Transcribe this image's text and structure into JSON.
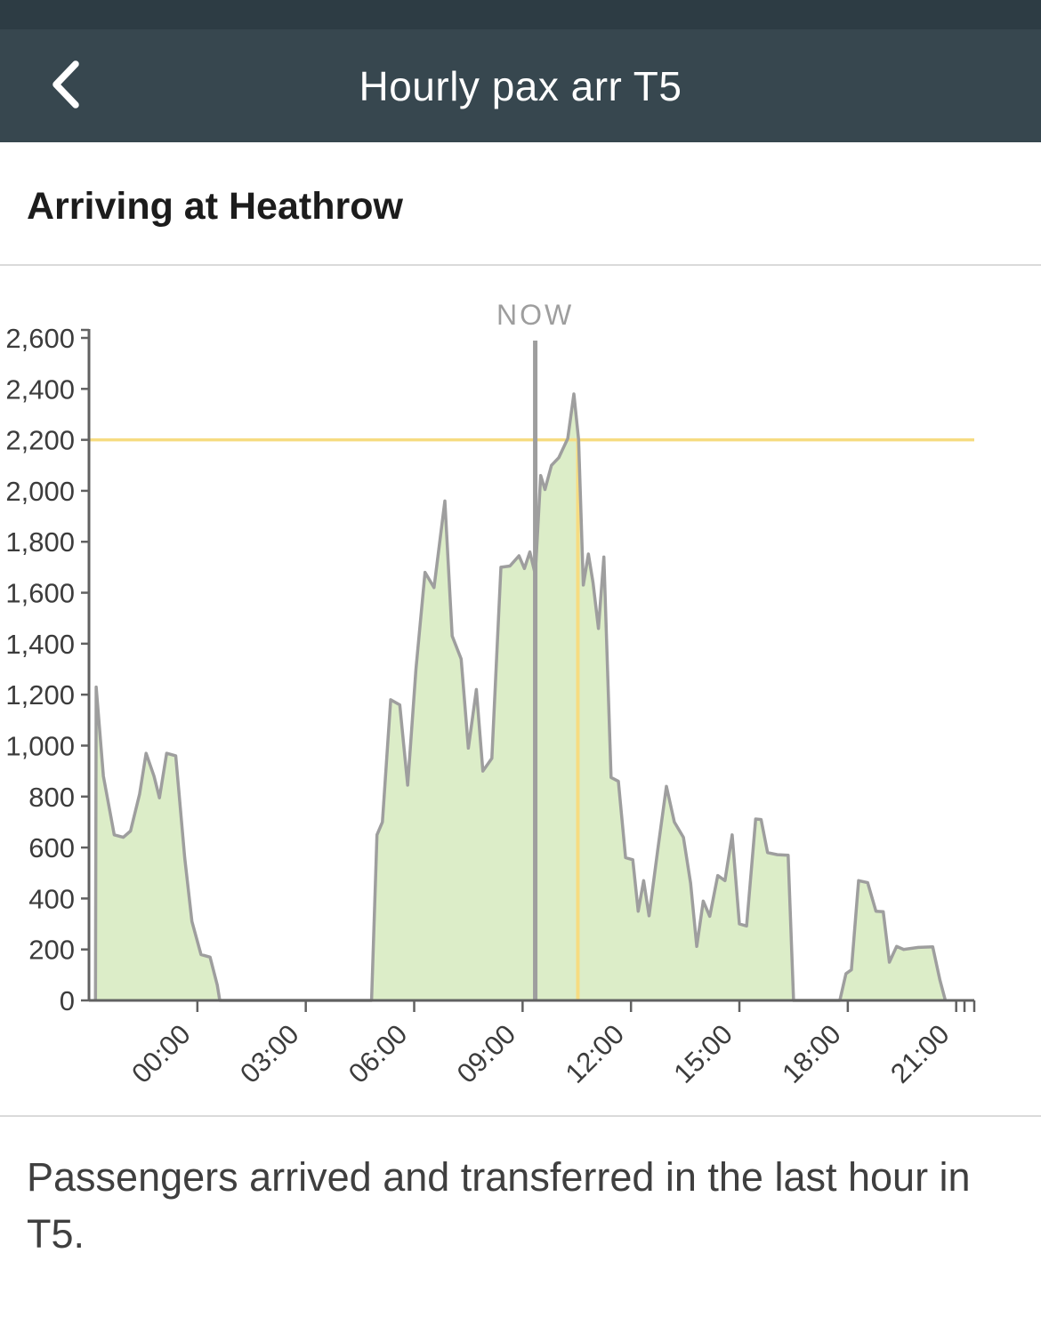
{
  "header": {
    "title": "Hourly pax arr T5"
  },
  "section": {
    "title": "Arriving at Heathrow"
  },
  "footer": {
    "description": "Passengers arrived and transferred in the last hour in T5."
  },
  "chart_data": {
    "type": "area",
    "now_label": "NOW",
    "now_hour": 9.35,
    "threshold_value": 2200,
    "threshold_marker_hour": 10.53,
    "x_range": [
      -3,
      21.5
    ],
    "y_range": [
      0,
      2600
    ],
    "y_ticks": [
      0,
      200,
      400,
      600,
      800,
      1000,
      1200,
      1400,
      1600,
      1800,
      2000,
      2200,
      2400,
      2600
    ],
    "x_ticks": [
      {
        "hour": 0,
        "label": "00:00"
      },
      {
        "hour": 3,
        "label": "03:00"
      },
      {
        "hour": 6,
        "label": "06:00"
      },
      {
        "hour": 9,
        "label": "09:00"
      },
      {
        "hour": 12,
        "label": "12:00"
      },
      {
        "hour": 15,
        "label": "15:00"
      },
      {
        "hour": 18,
        "label": "18:00"
      },
      {
        "hour": 21,
        "label": "21:00"
      }
    ],
    "colors": {
      "fill": "#dcedc8",
      "line": "#9e9e9e",
      "threshold": "#f6dc81",
      "now": "#9e9e9e",
      "axis": "#616161",
      "tick_label": "#3c3c3c"
    },
    "points_hour_value": [
      [
        -2.82,
        0
      ],
      [
        -2.8,
        1230
      ],
      [
        -2.6,
        880
      ],
      [
        -2.3,
        650
      ],
      [
        -2.05,
        640
      ],
      [
        -1.85,
        665
      ],
      [
        -1.6,
        810
      ],
      [
        -1.42,
        970
      ],
      [
        -1.2,
        880
      ],
      [
        -1.05,
        795
      ],
      [
        -0.85,
        970
      ],
      [
        -0.6,
        960
      ],
      [
        -0.35,
        560
      ],
      [
        -0.15,
        310
      ],
      [
        0.1,
        180
      ],
      [
        0.35,
        170
      ],
      [
        0.55,
        60
      ],
      [
        0.62,
        0
      ],
      [
        4.82,
        0
      ],
      [
        4.97,
        650
      ],
      [
        5.12,
        700
      ],
      [
        5.35,
        1180
      ],
      [
        5.6,
        1160
      ],
      [
        5.82,
        845
      ],
      [
        6.05,
        1300
      ],
      [
        6.3,
        1680
      ],
      [
        6.55,
        1620
      ],
      [
        6.85,
        1960
      ],
      [
        7.05,
        1430
      ],
      [
        7.3,
        1340
      ],
      [
        7.5,
        990
      ],
      [
        7.72,
        1220
      ],
      [
        7.9,
        900
      ],
      [
        8.15,
        950
      ],
      [
        8.4,
        1700
      ],
      [
        8.65,
        1705
      ],
      [
        8.9,
        1745
      ],
      [
        9.05,
        1695
      ],
      [
        9.2,
        1760
      ],
      [
        9.35,
        1672
      ],
      [
        9.5,
        2060
      ],
      [
        9.62,
        2005
      ],
      [
        9.8,
        2100
      ],
      [
        10.0,
        2130
      ],
      [
        10.25,
        2205
      ],
      [
        10.42,
        2380
      ],
      [
        10.55,
        2200
      ],
      [
        10.68,
        1630
      ],
      [
        10.82,
        1752
      ],
      [
        10.95,
        1640
      ],
      [
        11.1,
        1460
      ],
      [
        11.25,
        1740
      ],
      [
        11.45,
        875
      ],
      [
        11.65,
        860
      ],
      [
        11.85,
        560
      ],
      [
        12.05,
        552
      ],
      [
        12.2,
        350
      ],
      [
        12.35,
        470
      ],
      [
        12.5,
        332
      ],
      [
        12.75,
        600
      ],
      [
        12.98,
        840
      ],
      [
        13.2,
        700
      ],
      [
        13.45,
        640
      ],
      [
        13.65,
        460
      ],
      [
        13.82,
        212
      ],
      [
        14.0,
        390
      ],
      [
        14.18,
        330
      ],
      [
        14.4,
        490
      ],
      [
        14.6,
        470
      ],
      [
        14.8,
        650
      ],
      [
        15.0,
        300
      ],
      [
        15.2,
        292
      ],
      [
        15.45,
        712
      ],
      [
        15.6,
        710
      ],
      [
        15.78,
        580
      ],
      [
        16.05,
        572
      ],
      [
        16.35,
        570
      ],
      [
        16.5,
        0
      ],
      [
        17.78,
        0
      ],
      [
        17.95,
        105
      ],
      [
        18.1,
        120
      ],
      [
        18.3,
        470
      ],
      [
        18.55,
        462
      ],
      [
        18.78,
        350
      ],
      [
        18.98,
        348
      ],
      [
        19.15,
        150
      ],
      [
        19.35,
        212
      ],
      [
        19.55,
        200
      ],
      [
        19.95,
        208
      ],
      [
        20.35,
        210
      ],
      [
        20.55,
        80
      ],
      [
        20.7,
        0
      ]
    ]
  }
}
